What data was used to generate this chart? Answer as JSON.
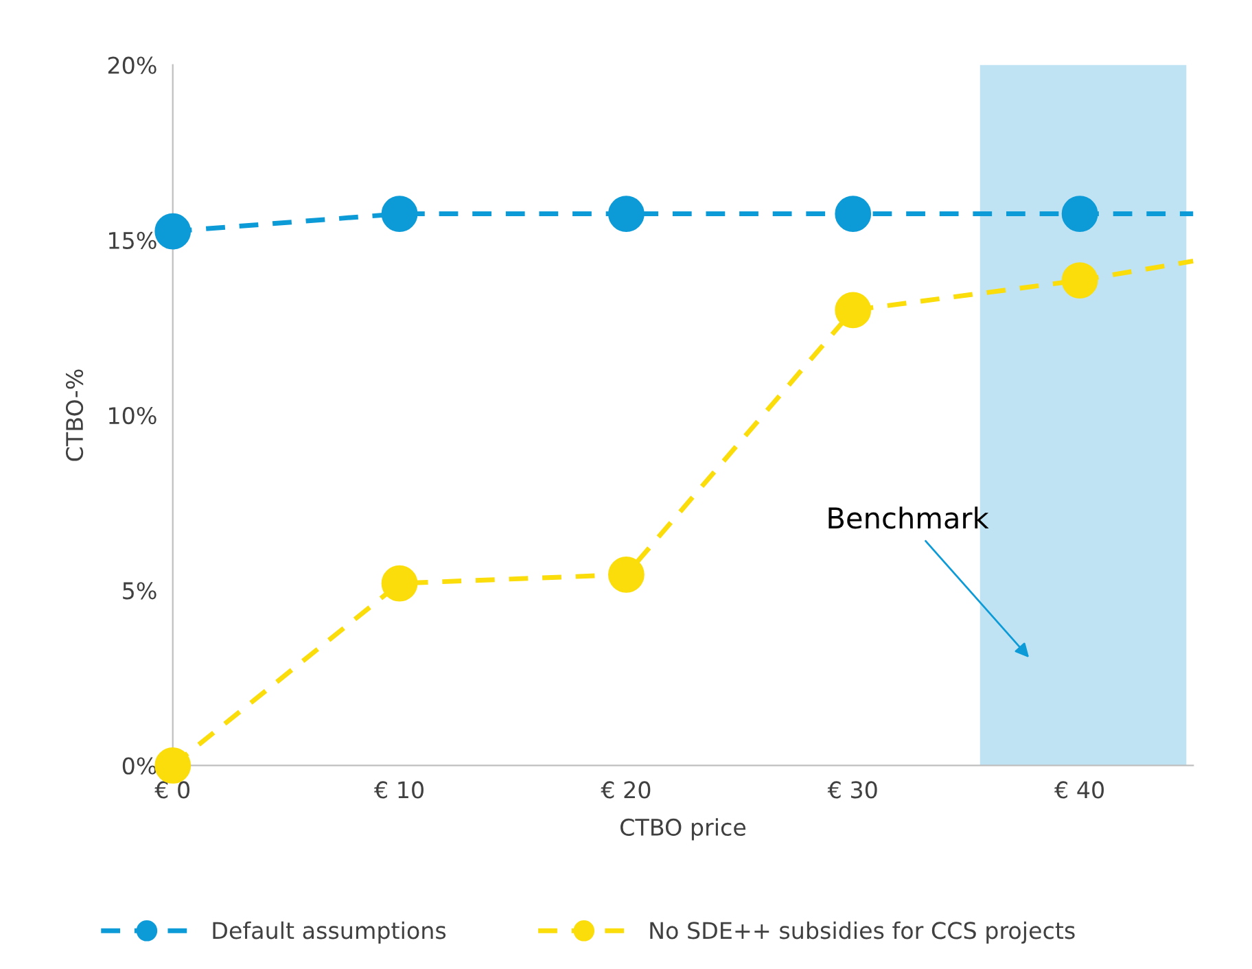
{
  "chart_data": {
    "type": "line",
    "xlabel": "CTBO price",
    "ylabel": "CTBO-%",
    "xlim": [
      0,
      45
    ],
    "xticks": [
      {
        "value": 0,
        "label": "€ 0"
      },
      {
        "value": 10,
        "label": "€ 10"
      },
      {
        "value": 20,
        "label": "€ 20"
      },
      {
        "value": 30,
        "label": "€ 30"
      },
      {
        "value": 40,
        "label": "€ 40"
      }
    ],
    "ylim": [
      0,
      20
    ],
    "yticks": [
      {
        "value": 0,
        "label": "0%"
      },
      {
        "value": 5,
        "label": "5%"
      },
      {
        "value": 10,
        "label": "10%"
      },
      {
        "value": 15,
        "label": "15%"
      },
      {
        "value": 20,
        "label": "20%"
      }
    ],
    "series": [
      {
        "name": "Default assumptions",
        "color": "#0d9bd8",
        "x": [
          0,
          10,
          20,
          30,
          40
        ],
        "values": [
          15.25,
          15.75,
          15.75,
          15.75,
          15.75
        ],
        "marker": "circle",
        "line_style": "dashed"
      },
      {
        "name": "No SDE++ subsidies for CCS projects",
        "color": "#fadd0a",
        "x": [
          0,
          10,
          20,
          30,
          40
        ],
        "values": [
          0,
          5.2,
          5.45,
          13.0,
          13.85
        ],
        "marker": "circle",
        "line_style": "dashed"
      },
      {
        "color": "#0d9bd8",
        "x": [
          40,
          45
        ],
        "values": [
          15.75,
          15.75
        ],
        "marker": "none",
        "line_style": "dashed"
      },
      {
        "color": "#fadd0a",
        "x": [
          40,
          45
        ],
        "values": [
          13.85,
          14.4
        ],
        "marker": "none",
        "line_style": "dashed"
      }
    ],
    "bands": [
      {
        "axis": "x",
        "from": 35.6,
        "to": 44.7,
        "color": "#bfe3f3",
        "label": "Benchmark"
      }
    ],
    "grid": false,
    "legend": "bottom"
  }
}
